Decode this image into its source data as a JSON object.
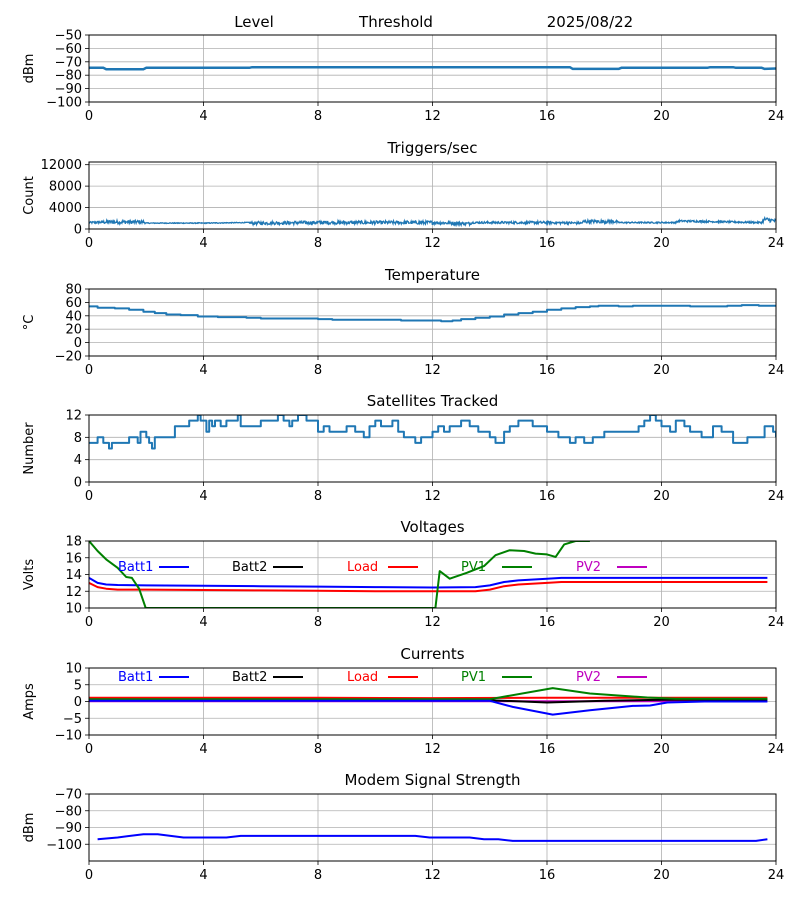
{
  "header": {
    "labels": [
      "Level",
      "Threshold",
      "2025/08/22"
    ]
  },
  "chart_data": [
    {
      "id": "level",
      "type": "line",
      "title": "",
      "xlabel": "",
      "ylabel": "dBm",
      "xlim": [
        0,
        24
      ],
      "ylim": [
        -100,
        -50
      ],
      "xticks": [
        0,
        4,
        8,
        12,
        16,
        20,
        24
      ],
      "yticks": [
        -100,
        -90,
        -80,
        -70,
        -60,
        -50
      ],
      "ytick_labels": [
        "−100",
        "−90",
        "−80",
        "−70",
        "−60",
        "−50"
      ],
      "grid": true,
      "series": [
        {
          "name": "Level",
          "color": "#1f77b4",
          "x": [
            0,
            0.5,
            0.6,
            1.9,
            2.0,
            5.6,
            5.7,
            16.8,
            16.9,
            18.5,
            18.6,
            21.6,
            21.7,
            22.5,
            22.6,
            23.5,
            23.6,
            24
          ],
          "y": [
            -74.5,
            -74.5,
            -75.5,
            -75.5,
            -74.5,
            -74.5,
            -74,
            -74,
            -75.3,
            -75.3,
            -74.5,
            -74.5,
            -74,
            -74,
            -74.5,
            -74.5,
            -75.3,
            -75
          ]
        }
      ]
    },
    {
      "id": "triggers",
      "type": "line",
      "title": "Triggers/sec",
      "xlabel": "",
      "ylabel": "Count",
      "xlim": [
        0,
        24
      ],
      "ylim": [
        0,
        12500
      ],
      "xticks": [
        0,
        4,
        8,
        12,
        16,
        20,
        24
      ],
      "yticks": [
        0,
        4000,
        8000,
        12000
      ],
      "ytick_labels": [
        "0",
        "4000",
        "8000",
        "12000"
      ],
      "grid": true,
      "series": [
        {
          "name": "Triggers",
          "color": "#1f77b4",
          "noisy": true,
          "x": [
            0,
            0.7,
            1.9,
            2.0,
            4,
            5.6,
            5.7,
            8,
            12,
            13.3,
            13.4,
            16,
            17.2,
            17.3,
            18.4,
            18.5,
            20.5,
            20.6,
            23.5,
            23.6,
            24
          ],
          "y": [
            1200,
            1300,
            1300,
            1100,
            1100,
            1200,
            1100,
            1200,
            1200,
            1000,
            1200,
            1200,
            1100,
            1400,
            1400,
            1200,
            1200,
            1500,
            1200,
            1800,
            1500
          ],
          "spread": [
            300,
            700,
            700,
            150,
            150,
            150,
            600,
            650,
            650,
            600,
            350,
            500,
            400,
            650,
            650,
            250,
            250,
            350,
            300,
            800,
            700
          ]
        }
      ]
    },
    {
      "id": "temperature",
      "type": "line",
      "title": "Temperature",
      "xlabel": "",
      "ylabel": "°C",
      "xlim": [
        0,
        24
      ],
      "ylim": [
        -20,
        80
      ],
      "xticks": [
        0,
        4,
        8,
        12,
        16,
        20,
        24
      ],
      "yticks": [
        -20,
        0,
        20,
        40,
        60,
        80
      ],
      "ytick_labels": [
        "−20",
        "0",
        "20",
        "40",
        "60",
        "80"
      ],
      "grid": true,
      "series": [
        {
          "name": "Temperature",
          "color": "#1f77b4",
          "step": true,
          "x": [
            0,
            0.3,
            0.9,
            1.4,
            1.9,
            2.3,
            2.7,
            3.2,
            3.8,
            4.5,
            5.5,
            6.0,
            7.0,
            8.0,
            8.5,
            10.0,
            10.9,
            12.3,
            12.7,
            13.0,
            13.5,
            14.0,
            14.5,
            15.0,
            15.5,
            16.0,
            16.5,
            17.0,
            17.5,
            17.8,
            18.5,
            19.0,
            19.6,
            21.0,
            21.5,
            22.3,
            22.8,
            23.4,
            24.0
          ],
          "y": [
            54,
            52,
            51,
            49,
            46,
            44,
            42,
            41,
            39,
            38,
            37,
            36,
            36,
            35,
            34,
            34,
            33,
            32,
            33,
            35,
            37,
            39,
            42,
            44,
            46,
            49,
            51,
            53,
            54,
            55,
            54,
            55,
            55,
            54,
            54,
            55,
            56,
            55,
            54
          ]
        }
      ]
    },
    {
      "id": "satellites",
      "type": "line",
      "title": "Satellites Tracked",
      "xlabel": "",
      "ylabel": "Number",
      "xlim": [
        0,
        24
      ],
      "ylim": [
        0,
        12
      ],
      "xticks": [
        0,
        4,
        8,
        12,
        16,
        20,
        24
      ],
      "yticks": [
        0,
        4,
        8,
        12
      ],
      "ytick_labels": [
        "0",
        "4",
        "8",
        "12"
      ],
      "grid": true,
      "series": [
        {
          "name": "Satellites",
          "color": "#1f77b4",
          "step": true,
          "x": [
            0,
            0.3,
            0.5,
            0.7,
            0.8,
            1.4,
            1.7,
            1.8,
            2.0,
            2.1,
            2.2,
            2.3,
            3.0,
            3.5,
            3.8,
            3.9,
            4.1,
            4.2,
            4.3,
            4.4,
            4.6,
            4.8,
            5.2,
            5.3,
            6.0,
            6.6,
            6.8,
            7.0,
            7.1,
            7.3,
            7.6,
            8.0,
            8.2,
            8.4,
            9.0,
            9.3,
            9.6,
            9.8,
            10.0,
            10.2,
            10.6,
            10.8,
            11.0,
            11.4,
            11.6,
            12.0,
            12.2,
            12.4,
            12.6,
            13.0,
            13.3,
            13.6,
            14.0,
            14.2,
            14.5,
            14.7,
            15.0,
            15.5,
            16.0,
            16.4,
            16.8,
            17.0,
            17.3,
            17.6,
            18.0,
            18.5,
            19.0,
            19.2,
            19.4,
            19.6,
            19.8,
            20.0,
            20.3,
            20.5,
            20.8,
            21.0,
            21.4,
            21.8,
            22.1,
            22.5,
            23.0,
            23.4,
            23.6,
            23.9,
            24
          ],
          "y": [
            7,
            8,
            7,
            6,
            7,
            8,
            7,
            9,
            8,
            7,
            6,
            8,
            10,
            11,
            12,
            11,
            9,
            11,
            10,
            11,
            10,
            11,
            12,
            10,
            11,
            12,
            11,
            10,
            11,
            12,
            11,
            9,
            10,
            9,
            10,
            9,
            8,
            10,
            11,
            10,
            11,
            9,
            8,
            7,
            8,
            9,
            10,
            9,
            10,
            11,
            10,
            9,
            8,
            7,
            9,
            10,
            11,
            10,
            9,
            8,
            7,
            8,
            7,
            8,
            9,
            9,
            9,
            10,
            11,
            12,
            11,
            10,
            9,
            11,
            10,
            9,
            8,
            10,
            9,
            7,
            8,
            8,
            10,
            9,
            8
          ]
        }
      ]
    },
    {
      "id": "voltages",
      "type": "line",
      "title": "Voltages",
      "xlabel": "",
      "ylabel": "Volts",
      "xlim": [
        0,
        24
      ],
      "ylim": [
        10,
        18
      ],
      "xticks": [
        0,
        4,
        8,
        12,
        16,
        20,
        24
      ],
      "yticks": [
        10,
        12,
        14,
        16,
        18
      ],
      "ytick_labels": [
        "10",
        "12",
        "14",
        "16",
        "18"
      ],
      "grid": true,
      "legend": {
        "placement": "top-inside",
        "entries": [
          {
            "label": "Batt1",
            "color": "#0000ff"
          },
          {
            "label": "Batt2",
            "color": "#000000"
          },
          {
            "label": "Load",
            "color": "#ff0000"
          },
          {
            "label": "PV1",
            "color": "#008000"
          },
          {
            "label": "PV2",
            "color": "#bf00bf"
          }
        ]
      },
      "series": [
        {
          "name": "Batt1",
          "color": "#0000ff",
          "x": [
            0,
            0.3,
            0.6,
            1,
            2,
            4,
            6,
            8,
            10,
            12,
            13.5,
            14,
            14.5,
            15,
            16,
            16.5,
            18,
            20,
            22,
            23.7
          ],
          "y": [
            13.6,
            13.0,
            12.8,
            12.75,
            12.7,
            12.65,
            12.6,
            12.55,
            12.5,
            12.45,
            12.5,
            12.7,
            13.1,
            13.3,
            13.5,
            13.6,
            13.6,
            13.6,
            13.6,
            13.6
          ]
        },
        {
          "name": "Load",
          "color": "#ff0000",
          "x": [
            0,
            0.3,
            0.6,
            1,
            2,
            4,
            6,
            8,
            10,
            12,
            13.5,
            14,
            14.5,
            15,
            16,
            16.5,
            18,
            20,
            22,
            23.7
          ],
          "y": [
            13.0,
            12.5,
            12.3,
            12.2,
            12.2,
            12.15,
            12.1,
            12.05,
            12.0,
            12.0,
            12.0,
            12.2,
            12.6,
            12.8,
            13.0,
            13.1,
            13.1,
            13.1,
            13.1,
            13.1
          ]
        },
        {
          "name": "PV1",
          "color": "#008000",
          "x": [
            0,
            0.3,
            0.6,
            1.0,
            1.3,
            1.5,
            1.75,
            1.98,
            12.1,
            12.25,
            12.6,
            13.2,
            13.8,
            14.2,
            14.7,
            15.2,
            15.6,
            16.0,
            16.3,
            16.6,
            17.0,
            17.5
          ],
          "y": [
            18,
            16.8,
            15.8,
            14.8,
            13.7,
            13.6,
            12.3,
            10,
            10,
            14.4,
            13.5,
            14.2,
            15.0,
            16.3,
            16.9,
            16.8,
            16.5,
            16.4,
            16.1,
            17.6,
            18,
            18
          ]
        },
        {
          "name": "Batt2",
          "color": "#000000",
          "x": [],
          "y": []
        },
        {
          "name": "PV2",
          "color": "#bf00bf",
          "x": [],
          "y": []
        }
      ]
    },
    {
      "id": "currents",
      "type": "line",
      "title": "Currents",
      "xlabel": "",
      "ylabel": "Amps",
      "xlim": [
        0,
        24
      ],
      "ylim": [
        -10,
        10
      ],
      "xticks": [
        0,
        4,
        8,
        12,
        16,
        20,
        24
      ],
      "yticks": [
        -10,
        -5,
        0,
        5,
        10
      ],
      "ytick_labels": [
        "−10",
        "−5",
        "0",
        "5",
        "10"
      ],
      "grid": true,
      "legend": {
        "placement": "top-inside",
        "entries": [
          {
            "label": "Batt1",
            "color": "#0000ff"
          },
          {
            "label": "Batt2",
            "color": "#000000"
          },
          {
            "label": "Load",
            "color": "#ff0000"
          },
          {
            "label": "PV1",
            "color": "#008000"
          },
          {
            "label": "PV2",
            "color": "#bf00bf"
          }
        ]
      },
      "series": [
        {
          "name": "PV2",
          "color": "#bf00bf",
          "x": [
            0,
            23.7
          ],
          "y": [
            0.1,
            0.1
          ]
        },
        {
          "name": "Batt2",
          "color": "#000000",
          "x": [
            0,
            2,
            12,
            14,
            16,
            18,
            20,
            23.7
          ],
          "y": [
            0.6,
            0.5,
            0.5,
            0.4,
            -0.3,
            0.2,
            0.5,
            0.6
          ]
        },
        {
          "name": "Load",
          "color": "#ff0000",
          "x": [
            0,
            4,
            8,
            12,
            16,
            20,
            23.7
          ],
          "y": [
            1.1,
            1.1,
            1.1,
            1.0,
            1.1,
            1.1,
            1.1
          ]
        },
        {
          "name": "PV1",
          "color": "#008000",
          "x": [
            0,
            14.0,
            16.2,
            17.5,
            19.5,
            20.5,
            23.7
          ],
          "y": [
            0.7,
            0.7,
            4.0,
            2.4,
            1.2,
            0.8,
            0.8
          ]
        },
        {
          "name": "Batt1",
          "color": "#0000ff",
          "x": [
            0,
            14.0,
            14.8,
            16.2,
            17.5,
            19.0,
            19.6,
            20.2,
            21.5,
            23.7
          ],
          "y": [
            0.2,
            0.2,
            -1.6,
            -3.9,
            -2.6,
            -1.3,
            -1.2,
            -0.3,
            0.0,
            0.0
          ]
        }
      ]
    },
    {
      "id": "modem",
      "type": "line",
      "title": "Modem Signal Strength",
      "xlabel": "",
      "ylabel": "dBm",
      "xlim": [
        0,
        24
      ],
      "ylim": [
        -110,
        -70
      ],
      "xticks": [
        0,
        4,
        8,
        12,
        16,
        20,
        24
      ],
      "yticks": [
        -100,
        -90,
        -80,
        -70
      ],
      "ytick_labels": [
        "−100",
        "−90",
        "−80",
        "−70"
      ],
      "grid": true,
      "series": [
        {
          "name": "Modem",
          "color": "#0000ff",
          "x": [
            0.3,
            1.0,
            1.9,
            2.4,
            3.3,
            4.8,
            5.3,
            11.4,
            11.9,
            13.3,
            13.8,
            14.3,
            14.8,
            23.3,
            23.7
          ],
          "y": [
            -97,
            -96,
            -94,
            -94,
            -96,
            -96,
            -95,
            -95,
            -96,
            -96,
            -97,
            -97,
            -98,
            -98,
            -97
          ]
        }
      ]
    }
  ]
}
